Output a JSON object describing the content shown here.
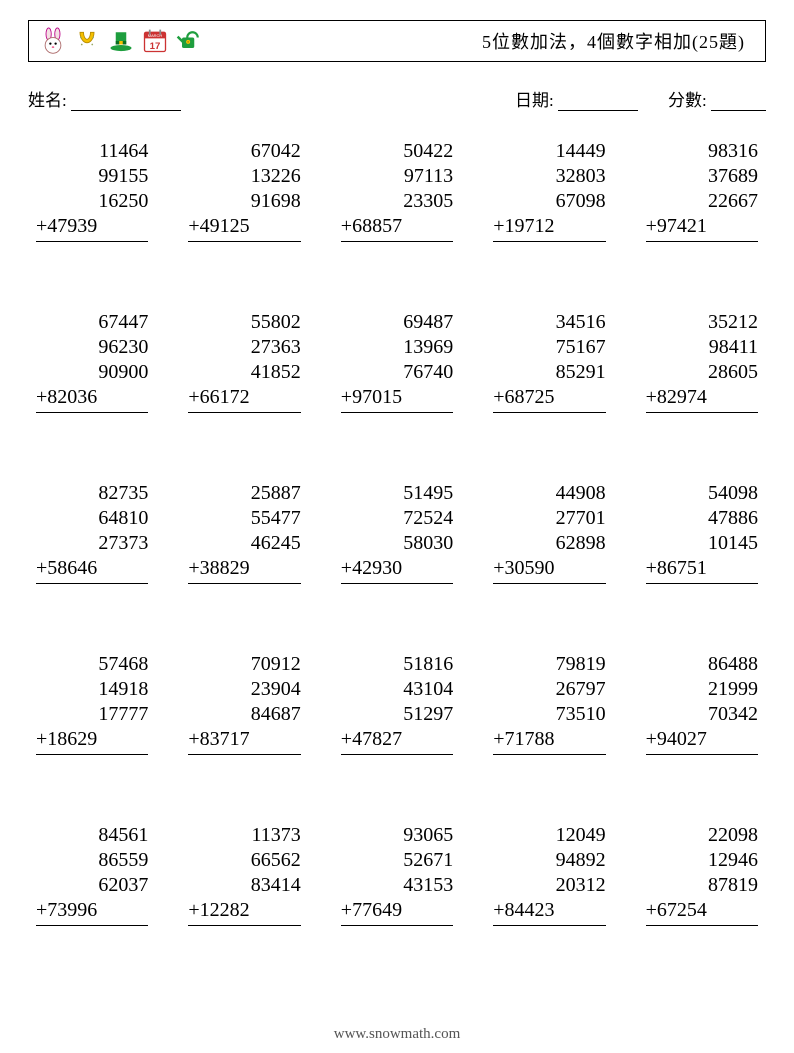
{
  "header": {
    "title": "5位數加法，4個數字相加(25題)",
    "icons": [
      "bunny",
      "horseshoe",
      "leprechaun-hat",
      "calendar-17",
      "watering-can"
    ]
  },
  "meta": {
    "name_label": "姓名:",
    "date_label": "日期:",
    "score_label": "分數:",
    "name_line_w": 110,
    "date_line_w": 80,
    "score_line_w": 55
  },
  "style": {
    "digit_fontsize": 20,
    "digit_color": "#000000",
    "background": "#ffffff",
    "grid_cols": 5,
    "grid_rows": 5,
    "col_gap": 40,
    "row_gap": 50
  },
  "problems": [
    {
      "nums": [
        "11464",
        "99155",
        "16250"
      ],
      "last": "47939"
    },
    {
      "nums": [
        "67042",
        "13226",
        "91698"
      ],
      "last": "49125"
    },
    {
      "nums": [
        "50422",
        "97113",
        "23305"
      ],
      "last": "68857"
    },
    {
      "nums": [
        "14449",
        "32803",
        "67098"
      ],
      "last": "19712"
    },
    {
      "nums": [
        "98316",
        "37689",
        "22667"
      ],
      "last": "97421"
    },
    {
      "nums": [
        "67447",
        "96230",
        "90900"
      ],
      "last": "82036"
    },
    {
      "nums": [
        "55802",
        "27363",
        "41852"
      ],
      "last": "66172"
    },
    {
      "nums": [
        "69487",
        "13969",
        "76740"
      ],
      "last": "97015"
    },
    {
      "nums": [
        "34516",
        "75167",
        "85291"
      ],
      "last": "68725"
    },
    {
      "nums": [
        "35212",
        "98411",
        "28605"
      ],
      "last": "82974"
    },
    {
      "nums": [
        "82735",
        "64810",
        "27373"
      ],
      "last": "58646"
    },
    {
      "nums": [
        "25887",
        "55477",
        "46245"
      ],
      "last": "38829"
    },
    {
      "nums": [
        "51495",
        "72524",
        "58030"
      ],
      "last": "42930"
    },
    {
      "nums": [
        "44908",
        "27701",
        "62898"
      ],
      "last": "30590"
    },
    {
      "nums": [
        "54098",
        "47886",
        "10145"
      ],
      "last": "86751"
    },
    {
      "nums": [
        "57468",
        "14918",
        "17777"
      ],
      "last": "18629"
    },
    {
      "nums": [
        "70912",
        "23904",
        "84687"
      ],
      "last": "83717"
    },
    {
      "nums": [
        "51816",
        "43104",
        "51297"
      ],
      "last": "47827"
    },
    {
      "nums": [
        "79819",
        "26797",
        "73510"
      ],
      "last": "71788"
    },
    {
      "nums": [
        "86488",
        "21999",
        "70342"
      ],
      "last": "94027"
    },
    {
      "nums": [
        "84561",
        "86559",
        "62037"
      ],
      "last": "73996"
    },
    {
      "nums": [
        "11373",
        "66562",
        "83414"
      ],
      "last": "12282"
    },
    {
      "nums": [
        "93065",
        "52671",
        "43153"
      ],
      "last": "77649"
    },
    {
      "nums": [
        "12049",
        "94892",
        "20312"
      ],
      "last": "84423"
    },
    {
      "nums": [
        "22098",
        "12946",
        "87819"
      ],
      "last": "67254"
    }
  ],
  "footer": {
    "url": "www.snowmath.com"
  }
}
